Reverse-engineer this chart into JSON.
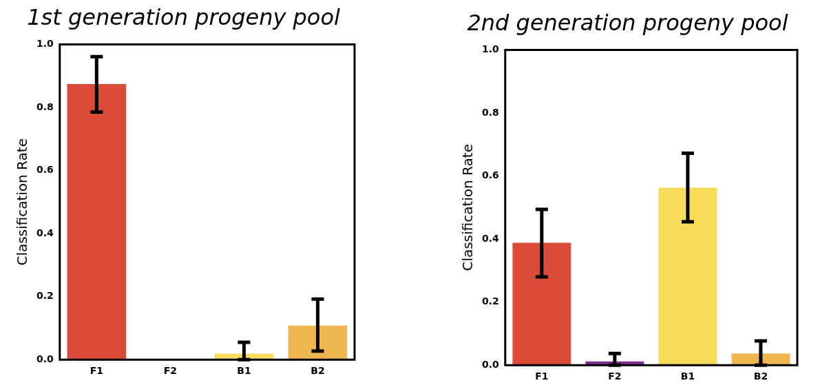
{
  "chart_data": [
    {
      "type": "bar",
      "title": "1st generation progeny pool",
      "ylabel": "Classification Rate",
      "categories": [
        "F1",
        "F2",
        "B1",
        "B2"
      ],
      "values": [
        0.874,
        0,
        0.019,
        0.108
      ],
      "colors": [
        "#db4b3a",
        "#7b2f8e",
        "#f9dc5c",
        "#efb54e"
      ],
      "errors": [
        [
          0.785,
          0.961
        ],
        null,
        [
          0,
          0.055
        ],
        [
          0.027,
          0.192
        ]
      ],
      "ylim": [
        0,
        1
      ],
      "yticks": [
        {
          "value": 0,
          "label": "0.0"
        },
        {
          "value": 0.2,
          "label": "0.2"
        },
        {
          "value": 0.4,
          "label": "0.4"
        },
        {
          "value": 0.6,
          "label": "0.6"
        },
        {
          "value": 0.8,
          "label": "0.8"
        },
        {
          "value": 1,
          "label": "1.0"
        }
      ],
      "grid": false,
      "legend": false
    },
    {
      "type": "bar",
      "title": "2nd generation progeny pool",
      "ylabel": "Classification Rate",
      "categories": [
        "F1",
        "F2",
        "B1",
        "B2"
      ],
      "values": [
        0.388,
        0.012,
        0.563,
        0.037
      ],
      "colors": [
        "#db4b3a",
        "#7b2f8e",
        "#f9dc5c",
        "#efb54e"
      ],
      "errors": [
        [
          0.28,
          0.494
        ],
        [
          0,
          0.037
        ],
        [
          0.455,
          0.672
        ],
        [
          0,
          0.077
        ]
      ],
      "ylim": [
        0,
        1
      ],
      "yticks": [
        {
          "value": 0,
          "label": "0.0"
        },
        {
          "value": 0.2,
          "label": "0.2"
        },
        {
          "value": 0.4,
          "label": "0.4"
        },
        {
          "value": 0.6,
          "label": "0.6"
        },
        {
          "value": 0.8,
          "label": "0.8"
        },
        {
          "value": 1,
          "label": "1.0"
        }
      ],
      "grid": false,
      "legend": false
    }
  ]
}
